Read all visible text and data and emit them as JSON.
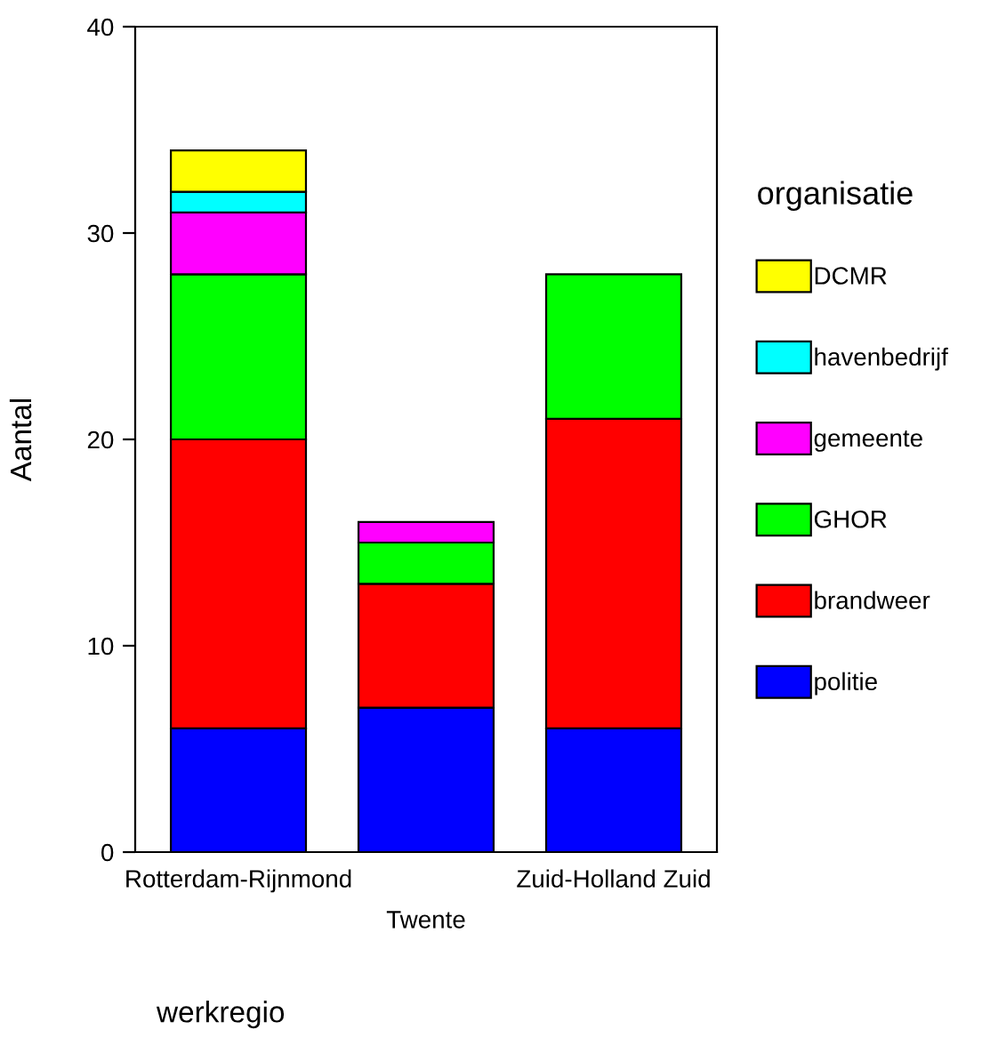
{
  "chart_data": {
    "type": "bar",
    "stacked": true,
    "categories": [
      "Rotterdam-Rijnmond",
      "Twente",
      "Zuid-Holland Zuid"
    ],
    "xlabel": "werkregio",
    "ylabel": "Aantal",
    "legend_title": "organisatie",
    "series": [
      {
        "name": "politie",
        "color": "#0000ff",
        "values": [
          6,
          7,
          6
        ]
      },
      {
        "name": "brandweer",
        "color": "#ff0000",
        "values": [
          14,
          6,
          15
        ]
      },
      {
        "name": "GHOR",
        "color": "#00ff00",
        "values": [
          8,
          2,
          7
        ]
      },
      {
        "name": "gemeente",
        "color": "#ff00ff",
        "values": [
          3,
          1,
          0
        ]
      },
      {
        "name": "havenbedrijf",
        "color": "#00ffff",
        "values": [
          1,
          0,
          0
        ]
      },
      {
        "name": "DCMR",
        "color": "#ffff00",
        "values": [
          2,
          0,
          0
        ]
      }
    ],
    "ylim": [
      0,
      40
    ],
    "yticks": [
      0,
      10,
      20,
      30,
      40
    ],
    "grid": false,
    "legend": "right"
  }
}
